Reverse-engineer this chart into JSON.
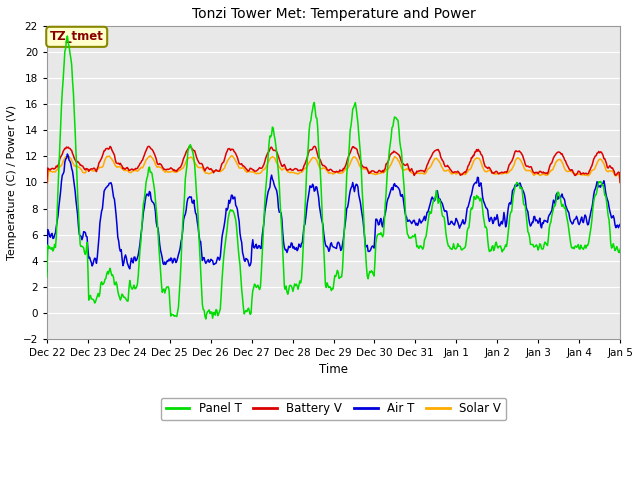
{
  "title": "Tonzi Tower Met: Temperature and Power",
  "xlabel": "Time",
  "ylabel": "Temperature (C) / Power (V)",
  "annotation": "TZ_tmet",
  "ylim": [
    -2,
    22
  ],
  "yticks": [
    -2,
    0,
    2,
    4,
    6,
    8,
    10,
    12,
    14,
    16,
    18,
    20,
    22
  ],
  "xtick_labels": [
    "Dec 22",
    "Dec 23",
    "Dec 24",
    "Dec 25",
    "Dec 26",
    "Dec 27",
    "Dec 28",
    "Dec 29",
    "Dec 30",
    "Dec 31",
    "Jan 1",
    "Jan 2",
    "Jan 3",
    "Jan 4",
    "Jan 5"
  ],
  "colors": {
    "panel_t": "#00dd00",
    "battery_v": "#dd0000",
    "air_t": "#0000dd",
    "solar_v": "#ffaa00"
  },
  "legend_labels": [
    "Panel T",
    "Battery V",
    "Air T",
    "Solar V"
  ],
  "fig_facecolor": "#ffffff",
  "plot_bg": "#e8e8e8",
  "grid_color": "#ffffff",
  "annotation_bg": "#ffffcc",
  "annotation_fg": "#880000",
  "annotation_edge": "#888800"
}
